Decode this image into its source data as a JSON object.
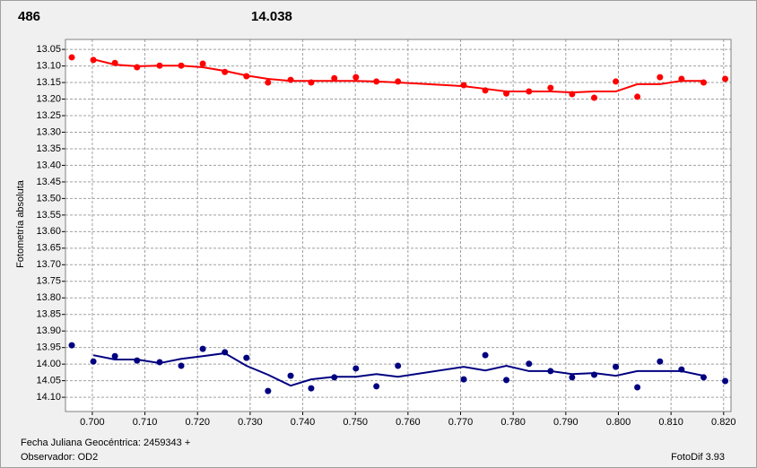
{
  "chart_data": {
    "type": "scatter",
    "header_labels": [
      {
        "text": "486",
        "color": "#ff0000"
      },
      {
        "text": "14.038",
        "color": "#000080"
      }
    ],
    "ylabel": "Fotometría absoluta",
    "xlabel": "Fecha Juliana Geocéntrica: 2459343 +",
    "observer": "Observador: OD2",
    "software": "FotoDif 3.93",
    "xlim": [
      0.6949,
      0.8214
    ],
    "ylim": [
      14.143,
      13.02
    ],
    "xticks": [
      {
        "value": 0.7,
        "label": "0.700"
      },
      {
        "value": 0.71,
        "label": "0.710"
      },
      {
        "value": 0.72,
        "label": "0.720"
      },
      {
        "value": 0.73,
        "label": "0.730"
      },
      {
        "value": 0.74,
        "label": "0.740"
      },
      {
        "value": 0.75,
        "label": "0.750"
      },
      {
        "value": 0.76,
        "label": "0.760"
      },
      {
        "value": 0.77,
        "label": "0.770"
      },
      {
        "value": 0.78,
        "label": "0.780"
      },
      {
        "value": 0.79,
        "label": "0.790"
      },
      {
        "value": 0.8,
        "label": "0.800"
      },
      {
        "value": 0.81,
        "label": "0.810"
      },
      {
        "value": 0.82,
        "label": "0.820"
      }
    ],
    "yticks": [
      13.05,
      {
        "value": 13.1,
        "label": "13.10"
      },
      13.15,
      {
        "value": 13.2,
        "label": "13.20"
      },
      13.25,
      {
        "value": 13.3,
        "label": "13.30"
      },
      13.35,
      {
        "value": 13.4,
        "label": "13.40"
      },
      13.45,
      {
        "value": 13.5,
        "label": "13.50"
      },
      13.55,
      {
        "value": 13.6,
        "label": "13.60"
      },
      13.65,
      {
        "value": 13.7,
        "label": "13.70"
      },
      13.75,
      {
        "value": 13.8,
        "label": "13.80"
      },
      13.85,
      {
        "value": 13.9,
        "label": "13.90"
      },
      13.95,
      {
        "value": 14.0,
        "label": "14.00"
      },
      14.05,
      {
        "value": 14.1,
        "label": "14.10"
      }
    ],
    "grid": true,
    "series": [
      {
        "mode": "markers",
        "color": "#ff0000",
        "x": [
          0.6961,
          0.7002,
          0.7043,
          0.7085,
          0.7128,
          0.7169,
          0.721,
          0.7252,
          0.7293,
          0.7334,
          0.7377,
          0.7416,
          0.746,
          0.7501,
          0.754,
          0.7581,
          0.7706,
          0.7747,
          0.7787,
          0.783,
          0.7871,
          0.7912,
          0.7954,
          0.7995,
          0.8036,
          0.8079,
          0.812,
          0.8162,
          0.8203
        ],
        "values": [
          13.074,
          13.082,
          13.091,
          13.104,
          13.099,
          13.099,
          13.093,
          13.118,
          13.131,
          13.15,
          13.142,
          13.15,
          13.137,
          13.134,
          13.147,
          13.147,
          13.158,
          13.174,
          13.183,
          13.177,
          13.166,
          13.185,
          13.196,
          13.147,
          13.193,
          13.134,
          13.139,
          13.15,
          13.139
        ]
      },
      {
        "mode": "line",
        "color": "#ff0000",
        "x": [
          0.7002,
          0.7043,
          0.7085,
          0.7128,
          0.7169,
          0.721,
          0.7252,
          0.7293,
          0.7334,
          0.7377,
          0.7416,
          0.746,
          0.7501,
          0.754,
          0.7581,
          0.7706,
          0.7747,
          0.7787,
          0.783,
          0.7871,
          0.7912,
          0.7954,
          0.7995,
          0.8036,
          0.8079,
          0.812,
          0.8162
        ],
        "values": [
          13.08,
          13.096,
          13.101,
          13.099,
          13.099,
          13.104,
          13.115,
          13.129,
          13.139,
          13.145,
          13.145,
          13.145,
          13.145,
          13.147,
          13.15,
          13.161,
          13.169,
          13.177,
          13.177,
          13.177,
          13.18,
          13.177,
          13.177,
          13.155,
          13.155,
          13.145,
          13.145
        ]
      },
      {
        "mode": "markers",
        "color": "#000080",
        "x": [
          0.6961,
          0.7002,
          0.7043,
          0.7085,
          0.7128,
          0.7169,
          0.721,
          0.7252,
          0.7293,
          0.7334,
          0.7377,
          0.7416,
          0.746,
          0.7501,
          0.754,
          0.7581,
          0.7706,
          0.7747,
          0.7787,
          0.783,
          0.7871,
          0.7912,
          0.7954,
          0.7995,
          0.8036,
          0.8079,
          0.812,
          0.8162,
          0.8203
        ],
        "values": [
          13.943,
          13.992,
          13.976,
          13.989,
          13.994,
          14.005,
          13.954,
          13.964,
          13.981,
          14.081,
          14.035,
          14.073,
          14.04,
          14.013,
          14.067,
          14.005,
          14.046,
          13.973,
          14.048,
          13.999,
          14.021,
          14.04,
          14.032,
          14.008,
          14.07,
          13.992,
          14.016,
          14.04,
          14.051
        ]
      },
      {
        "mode": "line",
        "color": "#000080",
        "x": [
          0.7002,
          0.7043,
          0.7085,
          0.7128,
          0.7169,
          0.721,
          0.7252,
          0.7293,
          0.7334,
          0.7377,
          0.7416,
          0.746,
          0.7501,
          0.754,
          0.7581,
          0.7706,
          0.7747,
          0.7787,
          0.783,
          0.7871,
          0.7912,
          0.7954,
          0.7995,
          0.8036,
          0.8079,
          0.812,
          0.8162
        ],
        "values": [
          13.973,
          13.986,
          13.986,
          13.997,
          13.984,
          13.976,
          13.967,
          14.005,
          14.032,
          14.065,
          14.046,
          14.038,
          14.038,
          14.03,
          14.038,
          14.008,
          14.019,
          14.005,
          14.021,
          14.021,
          14.03,
          14.027,
          14.035,
          14.021,
          14.021,
          14.021,
          14.035
        ]
      }
    ]
  }
}
